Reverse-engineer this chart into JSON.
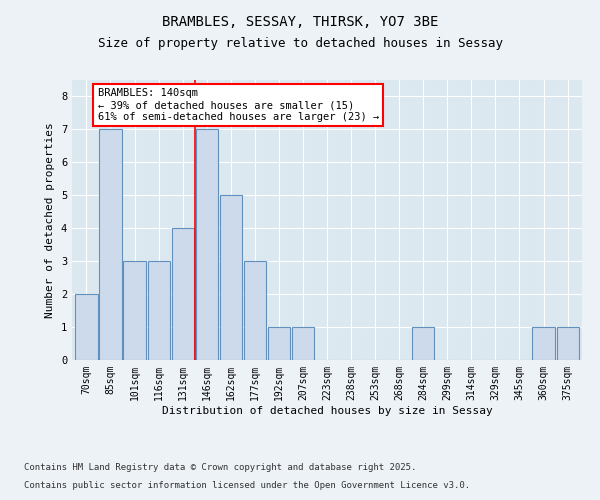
{
  "title_line1": "BRAMBLES, SESSAY, THIRSK, YO7 3BE",
  "title_line2": "Size of property relative to detached houses in Sessay",
  "xlabel": "Distribution of detached houses by size in Sessay",
  "ylabel": "Number of detached properties",
  "categories": [
    "70sqm",
    "85sqm",
    "101sqm",
    "116sqm",
    "131sqm",
    "146sqm",
    "162sqm",
    "177sqm",
    "192sqm",
    "207sqm",
    "223sqm",
    "238sqm",
    "253sqm",
    "268sqm",
    "284sqm",
    "299sqm",
    "314sqm",
    "329sqm",
    "345sqm",
    "360sqm",
    "375sqm"
  ],
  "values": [
    2,
    7,
    3,
    3,
    4,
    7,
    5,
    3,
    1,
    1,
    0,
    0,
    0,
    0,
    1,
    0,
    0,
    0,
    0,
    1,
    1
  ],
  "bar_color": "#ccdaeb",
  "bar_edge_color": "#6090bb",
  "red_line_x": 4.5,
  "annotation_text": "BRAMBLES: 140sqm\n← 39% of detached houses are smaller (15)\n61% of semi-detached houses are larger (23) →",
  "annotation_box_color": "white",
  "annotation_box_edge_color": "red",
  "ylim": [
    0,
    8.5
  ],
  "yticks": [
    0,
    1,
    2,
    3,
    4,
    5,
    6,
    7,
    8
  ],
  "footer_line1": "Contains HM Land Registry data © Crown copyright and database right 2025.",
  "footer_line2": "Contains public sector information licensed under the Open Government Licence v3.0.",
  "bg_color": "#edf2f7",
  "plot_bg_color": "#dce8f0",
  "grid_color": "white",
  "title_fontsize": 10,
  "subtitle_fontsize": 9,
  "axis_label_fontsize": 8,
  "tick_fontsize": 7,
  "annotation_fontsize": 7.5,
  "footer_fontsize": 6.5
}
